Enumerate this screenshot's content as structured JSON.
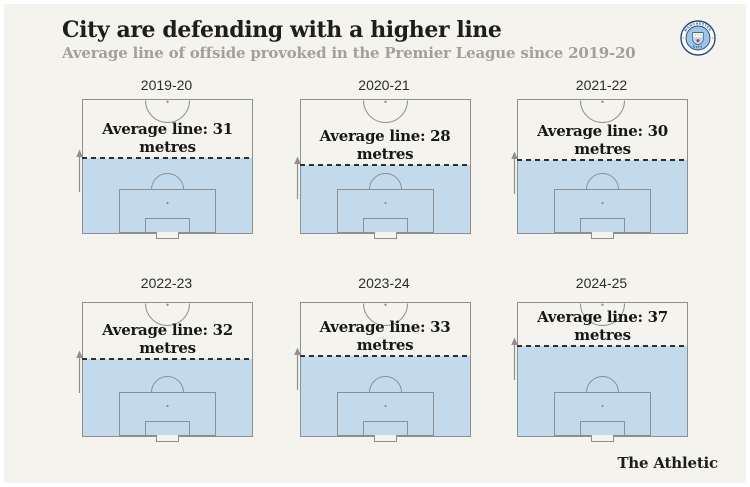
{
  "header": {
    "title": "City are defending with a higher line",
    "subtitle": "Average line of offside provoked in the Premier League since 2019-20",
    "badge_text_top": "MANCHESTER",
    "badge_text_bottom": "CITY"
  },
  "footer": {
    "credit": "The Athletic"
  },
  "chart_data": {
    "type": "pitch-small-multiples",
    "title": "City are defending with a higher line",
    "subtitle": "Average line of offside provoked in the Premier League since 2019-20",
    "unit": "metres",
    "categories": [
      "2019-20",
      "2020-21",
      "2021-22",
      "2022-23",
      "2023-24",
      "2024-25"
    ],
    "values": [
      31,
      28,
      30,
      32,
      33,
      37
    ],
    "seasons": [
      {
        "season": "2019-20",
        "metres": 31,
        "label": "Average line: 31 metres"
      },
      {
        "season": "2020-21",
        "metres": 28,
        "label": "Average line: 28 metres"
      },
      {
        "season": "2021-22",
        "metres": 30,
        "label": "Average line: 30 metres"
      },
      {
        "season": "2022-23",
        "metres": 32,
        "label": "Average line: 32 metres"
      },
      {
        "season": "2023-24",
        "metres": 33,
        "label": "Average line: 33 metres"
      },
      {
        "season": "2024-25",
        "metres": 37,
        "label": "Average line: 37 metres"
      }
    ],
    "layout_hint": "2 rows x 3 columns of half-pitches, goal at bottom, shaded zone from goal line up to average offside line",
    "colors": {
      "background": "#f4f3ee",
      "zone_fill": "#c3daed",
      "pitch_lines": "#8f8f8f",
      "dashed_line": "#2e2e2e",
      "title_text": "#1d1d1b",
      "subtitle_text": "#a2a199",
      "crest_navy": "#25477e",
      "crest_sky": "#9cc6e6",
      "crest_gold": "#e8b32a",
      "crest_red": "#cf3339"
    }
  }
}
